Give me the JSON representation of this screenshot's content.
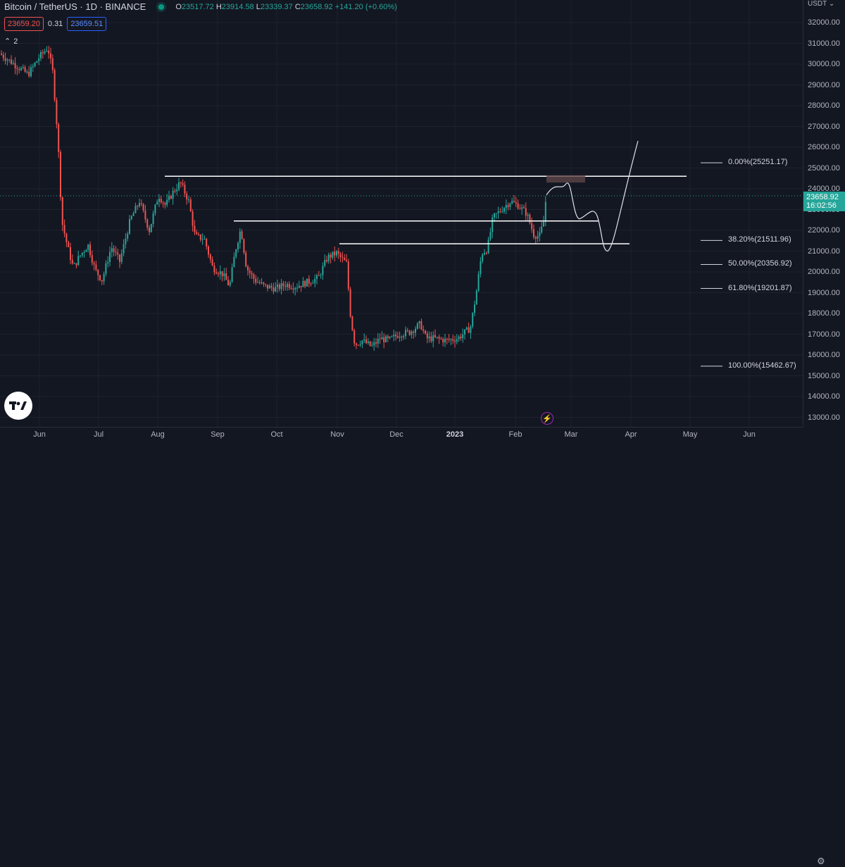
{
  "legend": {
    "title": "Bitcoin / TetherUS · 1D · BINANCE",
    "ohlc": [
      {
        "key": "O",
        "value": "23517.72"
      },
      {
        "key": "H",
        "value": "23914.58"
      },
      {
        "key": "L",
        "value": "23339.37"
      },
      {
        "key": "C",
        "value": "23658.92"
      }
    ],
    "change": "+141.20 (+0.60%)"
  },
  "quote": {
    "bid": "23659.20",
    "spread": "0.31",
    "ask": "23659.51"
  },
  "indicators_toggle": {
    "count": "2"
  },
  "price_axis": {
    "currency": "USDT ⌄",
    "ticks": [
      "32000.00",
      "31000.00",
      "30000.00",
      "29000.00",
      "28000.00",
      "27000.00",
      "26000.00",
      "25000.00",
      "24000.00",
      "23000.00",
      "22000.00",
      "21000.00",
      "20000.00",
      "19000.00",
      "18000.00",
      "17000.00",
      "16000.00",
      "15000.00",
      "14000.00",
      "13000.00"
    ],
    "current_price": "23658.92",
    "countdown": "16:02:56"
  },
  "time_axis": {
    "labels": [
      "Jun",
      "Jul",
      "Aug",
      "Sep",
      "Oct",
      "Nov",
      "Dec",
      "2023",
      "Feb",
      "Mar",
      "Apr",
      "May",
      "Jun"
    ]
  },
  "fib_levels": [
    {
      "label": "0.00%(25251.17)",
      "price": 25251.17
    },
    {
      "label": "38.20%(21511.96)",
      "price": 21511.96
    },
    {
      "label": "50.00%(20356.92)",
      "price": 20356.92
    },
    {
      "label": "61.80%(19201.87)",
      "price": 19201.87
    },
    {
      "label": "100.00%(15462.67)",
      "price": 15462.67
    }
  ],
  "horizontal_levels": [
    24600,
    22450,
    21350
  ],
  "colors": {
    "up": "#26a69a",
    "down": "#ef5350",
    "background": "#131722",
    "grid": "#1e222d"
  },
  "icons": {
    "logo": "tradingview-logo-icon",
    "flash": "flash-icon",
    "settings": "gear-icon"
  }
}
